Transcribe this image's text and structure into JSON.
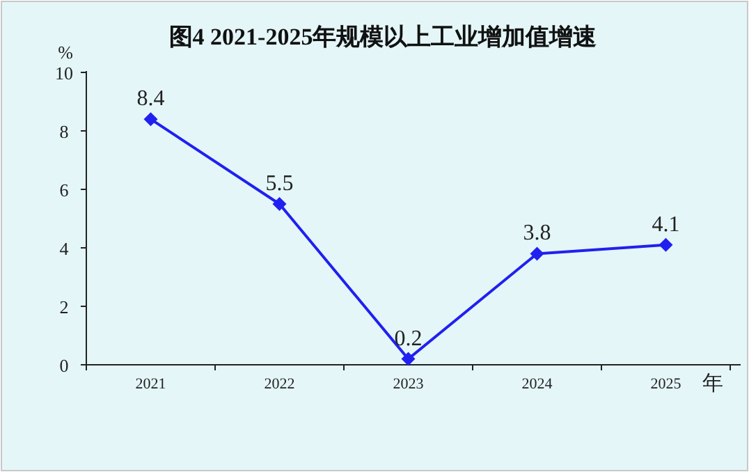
{
  "chart_data": {
    "type": "line",
    "title": "图4  2021-2025年规模以上工业增加值增速",
    "ylabel": "%",
    "xlabel": "年",
    "categories": [
      "2021",
      "2022",
      "2023",
      "2024",
      "2025"
    ],
    "series": [
      {
        "color": "#2020f0",
        "values": [
          8.4,
          5.5,
          0.2,
          3.8,
          4.1
        ]
      }
    ],
    "ylim": [
      0,
      10
    ],
    "yticks": [
      0,
      2,
      4,
      6,
      8,
      10
    ],
    "data_labels": true,
    "marker": "diamond",
    "grid": false
  }
}
